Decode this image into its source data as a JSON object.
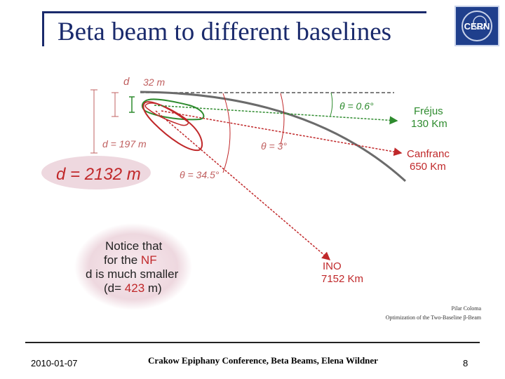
{
  "slide": {
    "title": "Beta beam to different baselines",
    "date": "2010-01-07",
    "footer": "Crakow Epiphany Conference, Beta Beams, Elena Wildner",
    "page_number": "8"
  },
  "logo": {
    "icon": "cern-logo-icon",
    "text": "CERN"
  },
  "colors": {
    "title": "#1a2a6c",
    "red": "#c0282a",
    "green": "#2e8b2e",
    "earth": "#6b6b6b",
    "bubble": "#eed8df"
  },
  "diagram": {
    "depth_label_d": "d",
    "depth_32": "32 m",
    "depth_197": "d = 197 m",
    "depth_2132": "d = 2132 m",
    "angle_06": "θ = 0.6°",
    "angle_3": "θ = 3°",
    "angle_345": "θ = 34.5°",
    "dest_frejus_name": "Fréjus",
    "dest_frejus_dist": "130 Km",
    "dest_canfranc_name": "Canfranc",
    "dest_canfranc_dist": "650 Km",
    "dest_ino_name": "INO",
    "dest_ino_dist": "7152 Km"
  },
  "notice": {
    "line1": "Notice that",
    "line2_pre": "for the ",
    "line2_hl": "NF",
    "line3": "d is much smaller",
    "line4_pre": "(d= ",
    "line4_hl": "423",
    "line4_post": " m)"
  },
  "credit": {
    "author": "Pilar Coloma",
    "paper": "Optimization of the Two-Baseline β-Beam"
  }
}
